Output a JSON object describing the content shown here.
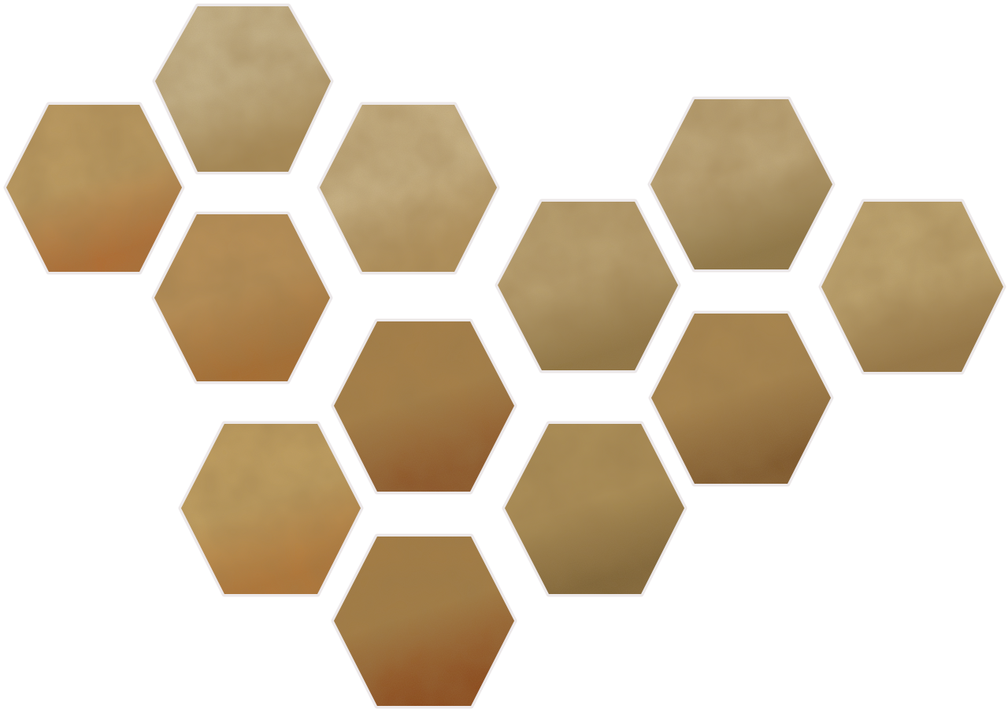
{
  "scene": {
    "background": "#ffffff",
    "tile_border_color": "#ece8e9",
    "tile_count": 12,
    "tiles": [
      {
        "id": "tile-1",
        "tone": "light-beige",
        "base": "#c8b68e",
        "accent": "#a88a56"
      },
      {
        "id": "tile-2",
        "tone": "ochre",
        "base": "#bc9a60",
        "accent": "#b06a30"
      },
      {
        "id": "tile-3",
        "tone": "light-tan",
        "base": "#c9b387",
        "accent": "#b3925c"
      },
      {
        "id": "tile-4",
        "tone": "amber",
        "base": "#b88e55",
        "accent": "#a66a2e"
      },
      {
        "id": "tile-5",
        "tone": "olive-tan",
        "base": "#b9a070",
        "accent": "#8f7443"
      },
      {
        "id": "tile-6",
        "tone": "khaki",
        "base": "#bea77a",
        "accent": "#8e7646"
      },
      {
        "id": "tile-7",
        "tone": "warm-khaki",
        "base": "#c0a671",
        "accent": "#957544"
      },
      {
        "id": "tile-8",
        "tone": "rust-brown",
        "base": "#a57d45",
        "accent": "#8a4f22"
      },
      {
        "id": "tile-9",
        "tone": "bronze",
        "base": "#a8844d",
        "accent": "#7d5529"
      },
      {
        "id": "tile-10",
        "tone": "golden-ochre",
        "base": "#bf9d5f",
        "accent": "#b37434"
      },
      {
        "id": "tile-11",
        "tone": "olive-brown",
        "base": "#ab8d55",
        "accent": "#7d6235"
      },
      {
        "id": "tile-12",
        "tone": "burnt-sienna",
        "base": "#a27a42",
        "accent": "#8a4315"
      }
    ]
  }
}
